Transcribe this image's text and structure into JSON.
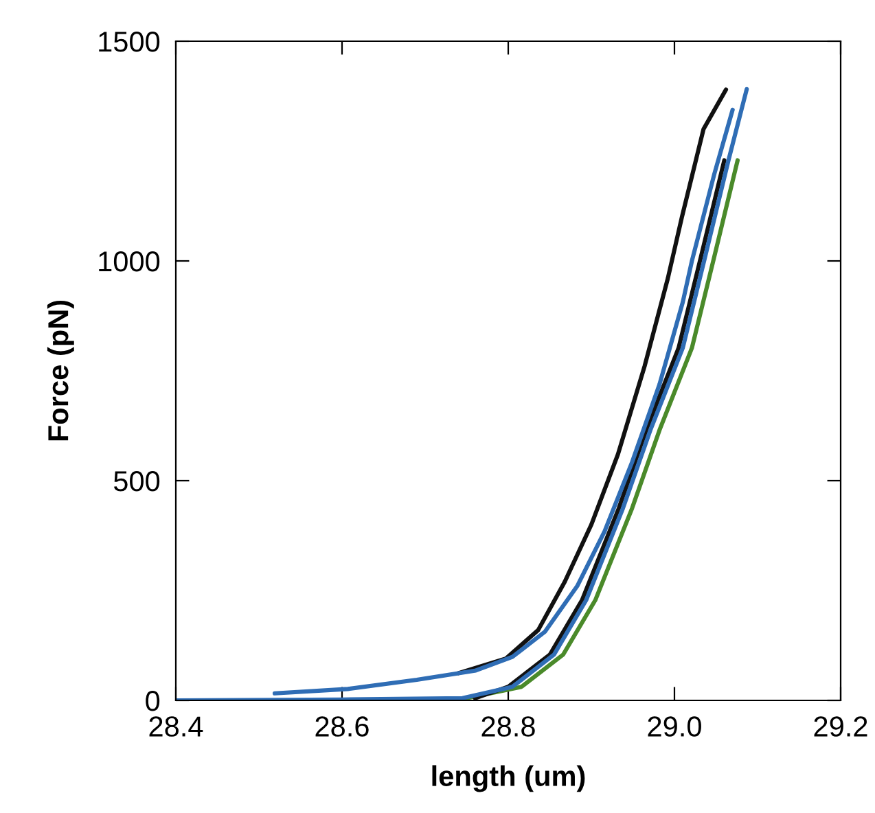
{
  "chart_data": {
    "type": "line",
    "xlabel": "length (um)",
    "ylabel": "Force (pN)",
    "xlim": [
      28.4,
      29.2
    ],
    "ylim": [
      0,
      1500
    ],
    "xticks": [
      {
        "value": 28.4,
        "label": "28.4"
      },
      {
        "value": 28.6,
        "label": "28.6"
      },
      {
        "value": 28.8,
        "label": "28.8"
      },
      {
        "value": 29.0,
        "label": "29.0"
      },
      {
        "value": 29.2,
        "label": "29.2"
      }
    ],
    "yticks": [
      0,
      500,
      1000,
      1500
    ],
    "marker": "none",
    "line_style": "solid",
    "series": [
      {
        "color": "#4a8a2a",
        "x": [
          28.75,
          28.816,
          28.866,
          28.905,
          28.949,
          28.982,
          29.021,
          29.048,
          29.076
        ],
        "values": [
          5,
          31,
          104,
          229,
          437,
          615,
          802,
          1010,
          1229
        ]
      },
      {
        "color": "#111111",
        "x": [
          28.76,
          28.8,
          28.85,
          28.889,
          28.933,
          28.966,
          29.005,
          29.032,
          29.06
        ],
        "values": [
          5,
          31,
          104,
          229,
          437,
          615,
          802,
          1010,
          1229
        ]
      },
      {
        "color": "#111111",
        "x": [
          28.74,
          28.797,
          28.836,
          28.868,
          28.9,
          28.932,
          28.964,
          28.992,
          29.009,
          29.035,
          29.062
        ],
        "values": [
          62,
          95,
          160,
          270,
          400,
          560,
          760,
          960,
          1100,
          1300,
          1390
        ]
      },
      {
        "color": "#2f6db5",
        "x": [
          28.4,
          28.6,
          28.745,
          28.805,
          28.855,
          28.894,
          28.938,
          28.971,
          29.01,
          29.037,
          29.065,
          29.087
        ],
        "values": [
          0,
          2,
          5,
          31,
          104,
          229,
          437,
          615,
          802,
          1010,
          1229,
          1391
        ]
      },
      {
        "color": "#2f6db5",
        "x": [
          28.519,
          28.607,
          28.69,
          28.761,
          28.805,
          28.844,
          28.883,
          28.916,
          28.949,
          28.982,
          29.01,
          29.021,
          29.048,
          29.07
        ],
        "values": [
          16,
          26,
          47,
          68,
          99,
          156,
          260,
          385,
          542,
          719,
          906,
          1000,
          1198,
          1344
        ]
      }
    ]
  }
}
